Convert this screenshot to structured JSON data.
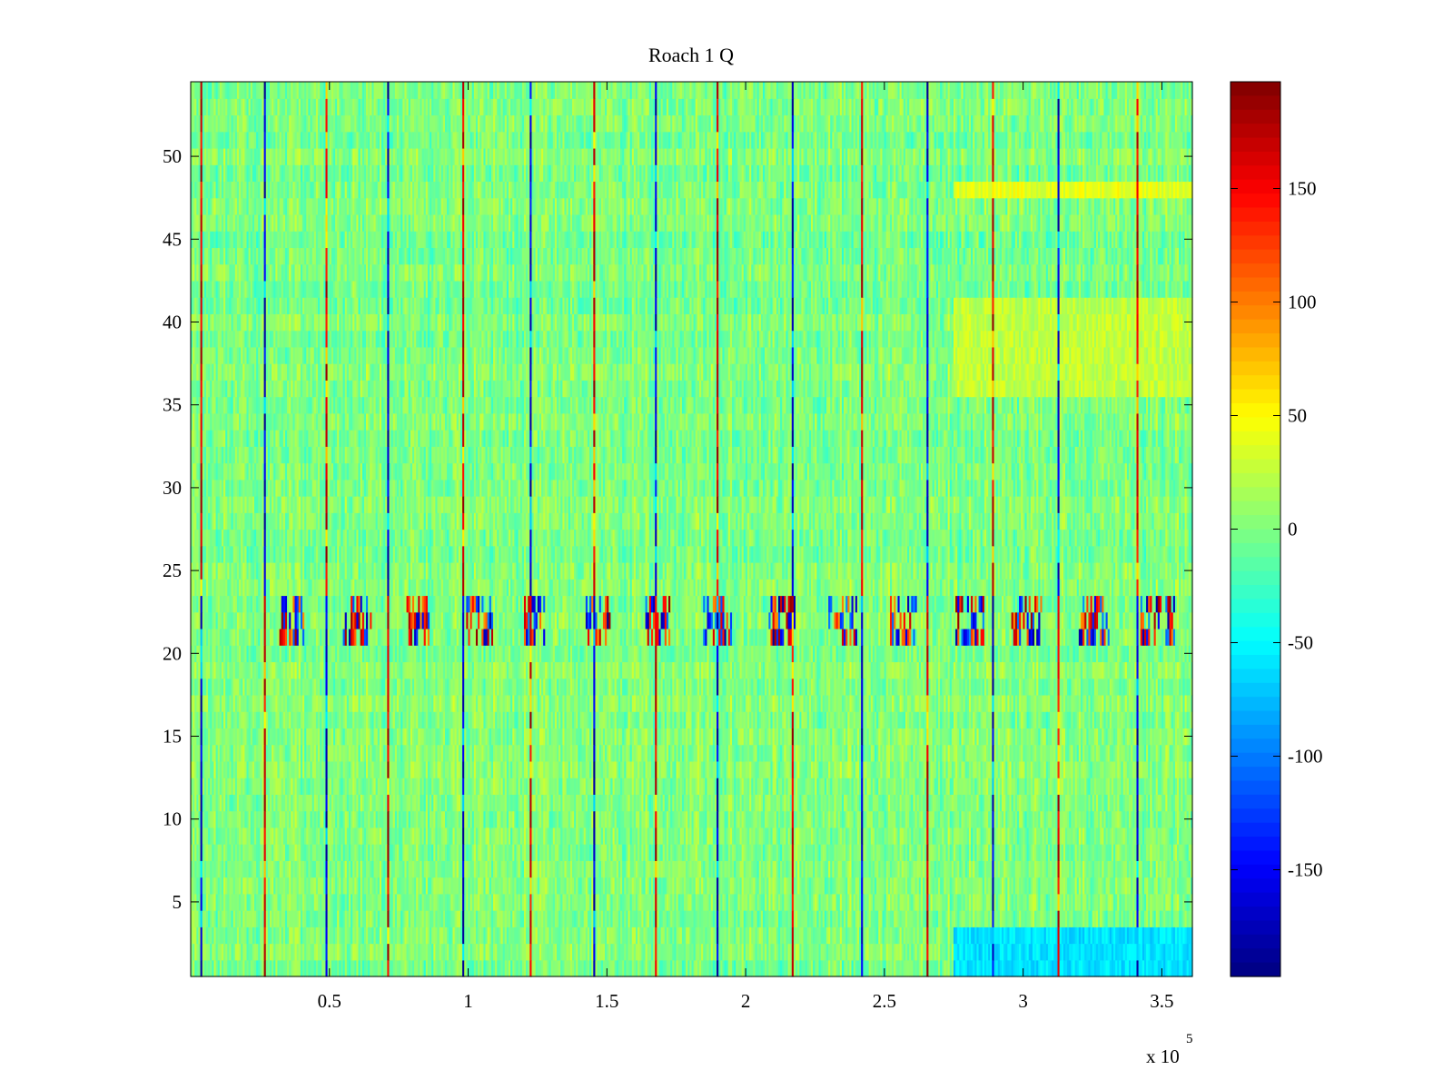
{
  "chart_data": {
    "type": "heatmap",
    "title": "Roach 1 Q",
    "xlabel": "",
    "ylabel": "",
    "xlim": [
      0,
      361000
    ],
    "ylim": [
      0.5,
      54.5
    ],
    "x_ticks": [
      50000,
      100000,
      150000,
      200000,
      250000,
      300000,
      350000
    ],
    "x_tick_labels": [
      "0.5",
      "1",
      "1.5",
      "2",
      "2.5",
      "3",
      "3.5"
    ],
    "x_exponent_label": "x 10",
    "x_exponent_power": "5",
    "y_ticks": [
      5,
      10,
      15,
      20,
      25,
      30,
      35,
      40,
      45,
      50
    ],
    "y_tick_labels": [
      "5",
      "10",
      "15",
      "20",
      "25",
      "30",
      "35",
      "40",
      "45",
      "50"
    ],
    "rows": 54,
    "colormap": "jet",
    "colorbar": {
      "clim": [
        -197,
        197
      ],
      "ticks": [
        -150,
        -100,
        -50,
        0,
        50,
        100,
        150
      ],
      "tick_labels": [
        "-150",
        "-100",
        "-50",
        "0",
        "50",
        "100",
        "150"
      ]
    },
    "typical_value_range": [
      -40,
      40
    ],
    "periodic_spike_columns_x": [
      3800,
      26500,
      48800,
      71200,
      98000,
      122700,
      145500,
      167500,
      189800,
      216800,
      241700,
      265600,
      289100,
      312600,
      341500
    ],
    "burst_band_rows": [
      21,
      22,
      23
    ],
    "burst_regions_x": [
      [
        32000,
        42000
      ],
      [
        55000,
        65000
      ],
      [
        78000,
        86000
      ],
      [
        99000,
        109000
      ],
      [
        120000,
        128000
      ],
      [
        142000,
        151000
      ],
      [
        164000,
        173000
      ],
      [
        185000,
        195000
      ],
      [
        208000,
        218000
      ],
      [
        230000,
        240000
      ],
      [
        252000,
        262000
      ],
      [
        275000,
        286000
      ],
      [
        296000,
        307000
      ],
      [
        320000,
        331000
      ],
      [
        342000,
        355000
      ]
    ],
    "notable_regions": [
      {
        "x_range": [
          275000,
          361000
        ],
        "rows": [
          1,
          2,
          3
        ],
        "approx_value": -60
      },
      {
        "x_range": [
          275000,
          361000
        ],
        "rows": [
          48
        ],
        "approx_value": 40
      },
      {
        "x_range": [
          275000,
          361000
        ],
        "rows": [
          36,
          37,
          38,
          39,
          40,
          41
        ],
        "approx_value": 25
      }
    ]
  }
}
